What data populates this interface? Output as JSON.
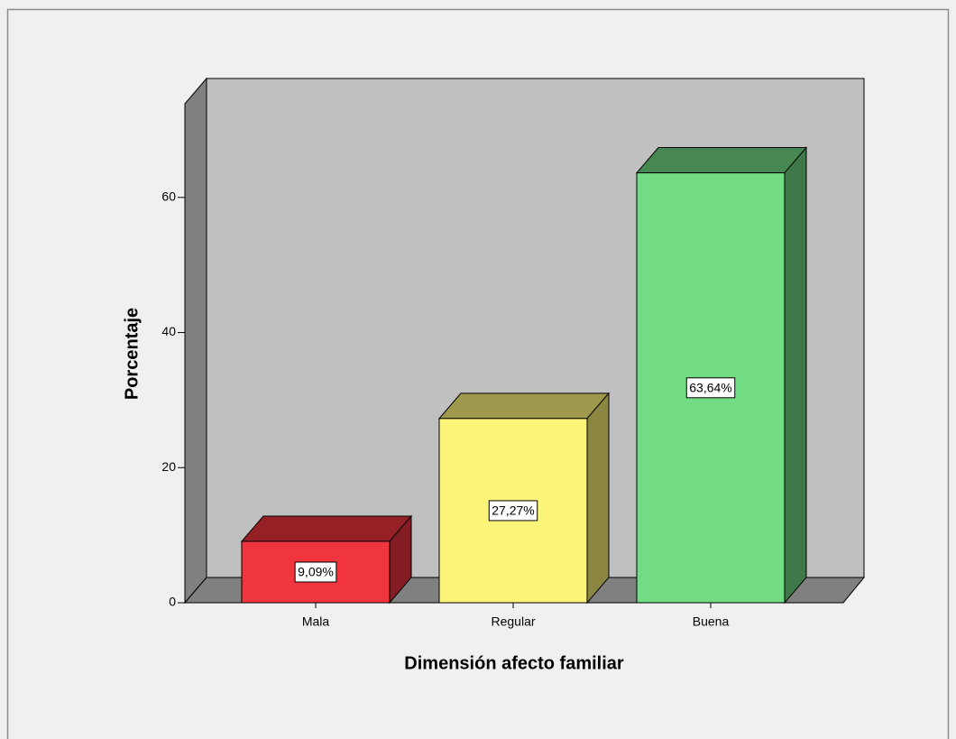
{
  "chart_data": {
    "type": "bar3d",
    "x_label": "Dimensión afecto familiar",
    "y_label": "Porcentaje",
    "categories": [
      "Mala",
      "Regular",
      "Buena"
    ],
    "values": [
      9.09,
      27.27,
      63.64
    ],
    "value_labels": [
      "9,09%",
      "27,27%",
      "63,64%"
    ],
    "colors": [
      "#f0353f",
      "#fdf57a",
      "#72dc84"
    ],
    "ylim": [
      0,
      74
    ],
    "yticks": [
      0,
      20,
      40,
      60
    ]
  }
}
